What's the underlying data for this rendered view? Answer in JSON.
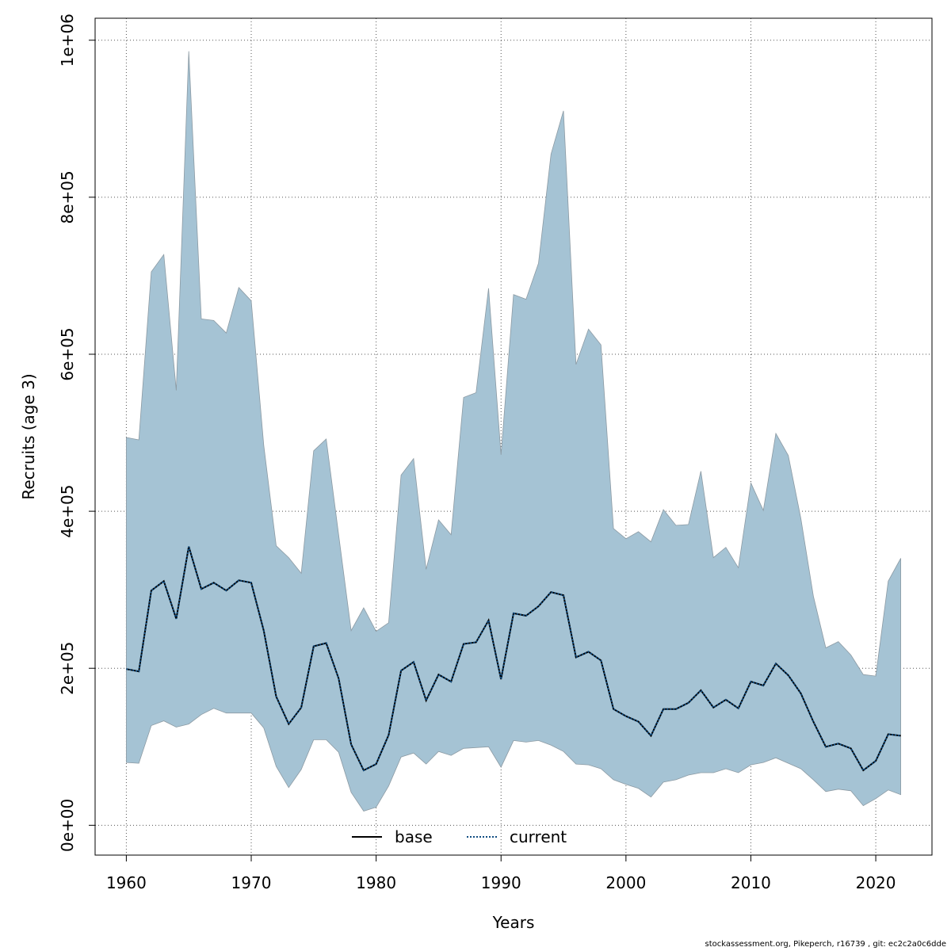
{
  "chart_data": {
    "type": "area",
    "xlabel": "Years",
    "ylabel": "Recruits (age 3)",
    "xlim": [
      1957.5,
      2024.5
    ],
    "ylim": [
      -38000,
      1028000
    ],
    "x_ticks": [
      1960,
      1970,
      1980,
      1990,
      2000,
      2010,
      2020
    ],
    "x_tick_labels": [
      "1960",
      "1970",
      "1980",
      "1990",
      "2000",
      "2010",
      "2020"
    ],
    "y_ticks": [
      0,
      200000,
      400000,
      600000,
      800000,
      1000000
    ],
    "y_tick_labels": [
      "0e+00",
      "2e+05",
      "4e+05",
      "6e+05",
      "8e+05",
      "1e+06"
    ],
    "grid": true,
    "legend": {
      "position": "bottom-center",
      "entries": [
        "base",
        "current"
      ]
    },
    "x": [
      1960,
      1961,
      1962,
      1963,
      1964,
      1965,
      1966,
      1967,
      1968,
      1969,
      1970,
      1971,
      1972,
      1973,
      1974,
      1975,
      1976,
      1977,
      1978,
      1979,
      1980,
      1981,
      1982,
      1983,
      1984,
      1985,
      1986,
      1987,
      1988,
      1989,
      1990,
      1991,
      1992,
      1993,
      1994,
      1995,
      1996,
      1997,
      1998,
      1999,
      2000,
      2001,
      2002,
      2003,
      2004,
      2005,
      2006,
      2007,
      2008,
      2009,
      2010,
      2011,
      2012,
      2013,
      2014,
      2015,
      2016,
      2017,
      2018,
      2019,
      2020,
      2021,
      2022
    ],
    "series": [
      {
        "name": "base",
        "style": "solid",
        "color": "#000000",
        "values": [
          199000,
          196000,
          299000,
          311000,
          263000,
          355000,
          301000,
          309000,
          299000,
          312000,
          309000,
          248000,
          164000,
          129000,
          150000,
          228000,
          232000,
          187000,
          103000,
          70000,
          78000,
          115000,
          197000,
          208000,
          159000,
          192000,
          183000,
          231000,
          233000,
          261000,
          186000,
          270000,
          267000,
          279000,
          297000,
          293000,
          214000,
          221000,
          210000,
          148000,
          139000,
          132000,
          114000,
          148000,
          148000,
          156000,
          172000,
          150000,
          160000,
          149000,
          183000,
          178000,
          206000,
          191000,
          168000,
          132000,
          100000,
          104000,
          98000,
          70000,
          82000,
          116000,
          114000
        ]
      },
      {
        "name": "current",
        "style": "dotted",
        "color": "#0f4c81",
        "values": [
          199000,
          196000,
          299000,
          311000,
          263000,
          355000,
          301000,
          309000,
          299000,
          312000,
          309000,
          248000,
          164000,
          129000,
          150000,
          228000,
          232000,
          187000,
          103000,
          70000,
          78000,
          115000,
          197000,
          208000,
          159000,
          192000,
          183000,
          231000,
          233000,
          261000,
          186000,
          270000,
          267000,
          279000,
          297000,
          293000,
          214000,
          221000,
          210000,
          148000,
          139000,
          132000,
          114000,
          148000,
          148000,
          156000,
          172000,
          150000,
          160000,
          149000,
          183000,
          178000,
          206000,
          191000,
          168000,
          132000,
          100000,
          104000,
          98000,
          70000,
          82000,
          116000,
          114000
        ]
      }
    ],
    "band": {
      "fill": "#a5c3d4",
      "stroke": "#8c9aa3",
      "upper": [
        494000,
        491000,
        705000,
        727000,
        554000,
        986000,
        645000,
        643000,
        627000,
        685000,
        668000,
        484000,
        356000,
        341000,
        321000,
        477000,
        492000,
        370000,
        248000,
        277000,
        247000,
        258000,
        446000,
        467000,
        326000,
        389000,
        370000,
        545000,
        551000,
        684000,
        472000,
        676000,
        670000,
        716000,
        855000,
        910000,
        587000,
        632000,
        612000,
        378000,
        365000,
        374000,
        361000,
        402000,
        382000,
        383000,
        451000,
        341000,
        354000,
        328000,
        436000,
        401000,
        499000,
        471000,
        391000,
        292000,
        226000,
        234000,
        217000,
        192000,
        190000,
        311000,
        340000
      ],
      "lower": [
        80000,
        79000,
        127000,
        133000,
        125000,
        129000,
        141000,
        149000,
        143000,
        143000,
        143000,
        124000,
        75000,
        48000,
        71000,
        109000,
        109000,
        93000,
        42000,
        18000,
        23000,
        50000,
        87000,
        92000,
        78000,
        94000,
        89000,
        98000,
        99000,
        100000,
        74000,
        108000,
        106000,
        108000,
        102000,
        94000,
        78000,
        77000,
        72000,
        58000,
        52000,
        47000,
        36000,
        55000,
        58000,
        64000,
        67000,
        67000,
        72000,
        67000,
        77000,
        80000,
        86000,
        79000,
        72000,
        58000,
        43000,
        46000,
        44000,
        25000,
        34000,
        45000,
        39000
      ]
    }
  },
  "footer": "stockassessment.org, Pikeperch, r16739 , git: ec2c2a0c6dde"
}
